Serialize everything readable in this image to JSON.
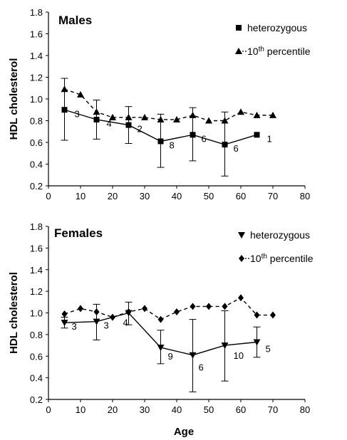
{
  "chart_data": [
    {
      "type": "line",
      "title": "Males",
      "ylabel": "HDL cholesterol",
      "xlabel": "",
      "xlim": [
        0,
        80
      ],
      "ylim": [
        0.2,
        1.8
      ],
      "xticks": [
        "0",
        "10",
        "20",
        "30",
        "40",
        "50",
        "60",
        "70",
        "80"
      ],
      "yticks": [
        "0.2",
        "0.4",
        "0.6",
        "0.8",
        "1.0",
        "1.2",
        "1.4",
        "1.6",
        "1.8"
      ],
      "legend_position": "top-right",
      "series": [
        {
          "name": "heterozygous",
          "marker": "square",
          "line": "solid",
          "x": [
            5,
            15,
            25,
            35,
            45,
            55,
            65
          ],
          "y": [
            0.9,
            0.81,
            0.76,
            0.61,
            0.67,
            0.58,
            0.67
          ],
          "err_low": [
            0.62,
            0.63,
            0.59,
            0.37,
            0.43,
            0.29,
            null
          ],
          "err_high": [
            1.19,
            0.99,
            0.93,
            0.86,
            0.92,
            0.88,
            null
          ],
          "n": [
            "3",
            "4",
            "2",
            "8",
            "6",
            "6",
            "1"
          ]
        },
        {
          "name": "10th percentile",
          "marker": "triangle",
          "line": "dashed",
          "x": [
            5,
            10,
            15,
            20,
            25,
            30,
            35,
            40,
            45,
            50,
            55,
            60,
            65,
            70
          ],
          "y": [
            1.09,
            1.04,
            0.88,
            0.83,
            0.83,
            0.83,
            0.81,
            0.81,
            0.85,
            0.8,
            0.8,
            0.88,
            0.85,
            0.85
          ]
        }
      ]
    },
    {
      "type": "line",
      "title": "Females",
      "ylabel": "HDL cholesterol",
      "xlabel": "Age",
      "xlim": [
        0,
        80
      ],
      "ylim": [
        0.2,
        1.8
      ],
      "xticks": [
        "0",
        "10",
        "20",
        "30",
        "40",
        "50",
        "60",
        "70",
        "80"
      ],
      "yticks": [
        "0.2",
        "0.4",
        "0.6",
        "0.8",
        "1.0",
        "1.2",
        "1.4",
        "1.6",
        "1.8"
      ],
      "legend_position": "top-right",
      "series": [
        {
          "name": "heterozygous",
          "marker": "triangle-down",
          "line": "solid",
          "x": [
            5,
            15,
            25,
            35,
            45,
            55,
            65
          ],
          "y": [
            0.91,
            0.92,
            1.0,
            0.68,
            0.61,
            0.7,
            0.73
          ],
          "err_low": [
            0.86,
            0.75,
            0.89,
            0.53,
            0.27,
            0.37,
            0.59
          ],
          "err_high": [
            0.96,
            1.08,
            1.1,
            0.84,
            0.94,
            1.02,
            0.87
          ],
          "n": [
            "3",
            "3",
            "4",
            "9",
            "6",
            "10",
            "5"
          ]
        },
        {
          "name": "10th percentile",
          "marker": "diamond",
          "line": "dashed",
          "x": [
            5,
            10,
            15,
            20,
            25,
            30,
            35,
            40,
            45,
            50,
            55,
            60,
            65,
            70
          ],
          "y": [
            0.99,
            1.04,
            1.01,
            0.96,
            1.01,
            1.04,
            0.94,
            1.01,
            1.06,
            1.06,
            1.06,
            1.14,
            0.98,
            0.98
          ]
        }
      ]
    }
  ]
}
